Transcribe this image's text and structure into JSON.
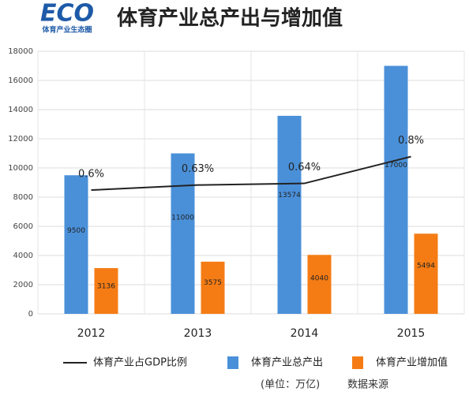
{
  "chart_data": {
    "type": "bar",
    "logo": "ECO",
    "logo_subtitle": "体育产业生态圈",
    "title": "体育产业总产出与增加值",
    "categories": [
      "2012",
      "2013",
      "2014",
      "2015"
    ],
    "ylim": [
      0,
      18000
    ],
    "yticks": [
      0,
      2000,
      4000,
      6000,
      8000,
      10000,
      12000,
      14000,
      16000,
      18000
    ],
    "y2lim": [
      -0.14,
      1.43
    ],
    "grid": true,
    "series": [
      {
        "name": "体育产业占GDP比例",
        "type": "line",
        "axis": "y2",
        "color": "#222222",
        "values": [
          0.6,
          0.63,
          0.64,
          0.8
        ],
        "value_labels": [
          "0.6%",
          "0.63%",
          "0.64%",
          "0.8%"
        ]
      },
      {
        "name": "体育产业总产出",
        "type": "bar",
        "color": "#4a90d9",
        "values": [
          9500,
          11000,
          13574,
          17000
        ]
      },
      {
        "name": "体育产业增加值",
        "type": "bar",
        "color": "#f57c14",
        "values": [
          3136,
          3575,
          4040,
          5494
        ]
      }
    ],
    "unit_note": "(单位：万亿)",
    "source": "数据来源"
  }
}
